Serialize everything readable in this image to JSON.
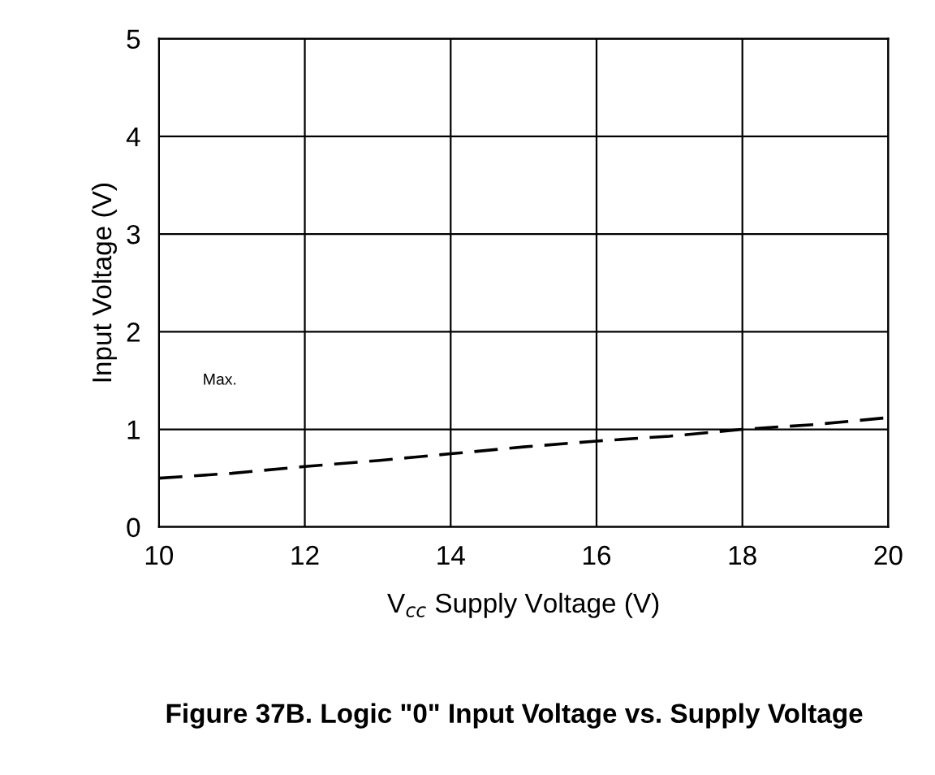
{
  "chart_data": {
    "type": "line",
    "title": "Figure 37B. Logic \"0\" Input Voltage vs. Supply Voltage",
    "xlabel": "V$_{cc}$ Supply Voltage (V)",
    "ylabel": "Input Voltage (V)",
    "x": [
      10,
      11,
      12,
      13,
      14,
      15,
      16,
      17,
      18,
      19,
      20
    ],
    "series": [
      {
        "color": "#000000",
        "values": [
          0.5,
          0.55,
          0.62,
          0.68,
          0.75,
          0.82,
          0.88,
          0.93,
          1.0,
          1.05,
          1.12
        ]
      }
    ],
    "xlim": [
      10,
      20
    ],
    "xticks": [
      10,
      12,
      14,
      16,
      18,
      20
    ],
    "ylim": [
      0,
      5
    ],
    "yticks": [
      0,
      1,
      2,
      3,
      4,
      5
    ],
    "grid": true,
    "line_style": "dashed",
    "marker": "none",
    "annotations": [
      "Max."
    ]
  }
}
